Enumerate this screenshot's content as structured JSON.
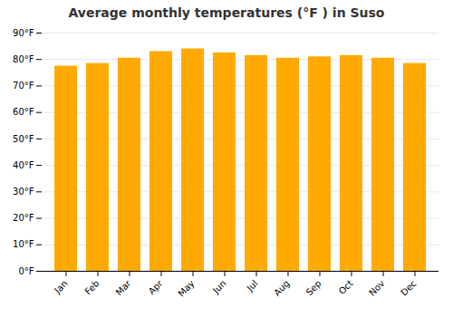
{
  "chart_data": {
    "type": "bar",
    "title": "Average monthly temperatures (°F ) in Suso",
    "categories": [
      "Jan",
      "Feb",
      "Mar",
      "Apr",
      "May",
      "Jun",
      "Jul",
      "Aug",
      "Sep",
      "Oct",
      "Nov",
      "Dec"
    ],
    "values": [
      77.5,
      78.5,
      80.5,
      83.0,
      84.0,
      82.5,
      81.5,
      80.5,
      81.0,
      81.5,
      80.5,
      78.5
    ],
    "color": "#FFAA00",
    "ylim": [
      0,
      90
    ],
    "yticks": [
      {
        "value": 0,
        "label": "0°F"
      },
      {
        "value": 10,
        "label": "10°F"
      },
      {
        "value": 20,
        "label": "20°F"
      },
      {
        "value": 30,
        "label": "30°F"
      },
      {
        "value": 40,
        "label": "40°F"
      },
      {
        "value": 50,
        "label": "50°F"
      },
      {
        "value": 60,
        "label": "60°F"
      },
      {
        "value": 70,
        "label": "70°F"
      },
      {
        "value": 80,
        "label": "80°F"
      },
      {
        "value": 90,
        "label": "90°F"
      }
    ],
    "grid": true
  }
}
